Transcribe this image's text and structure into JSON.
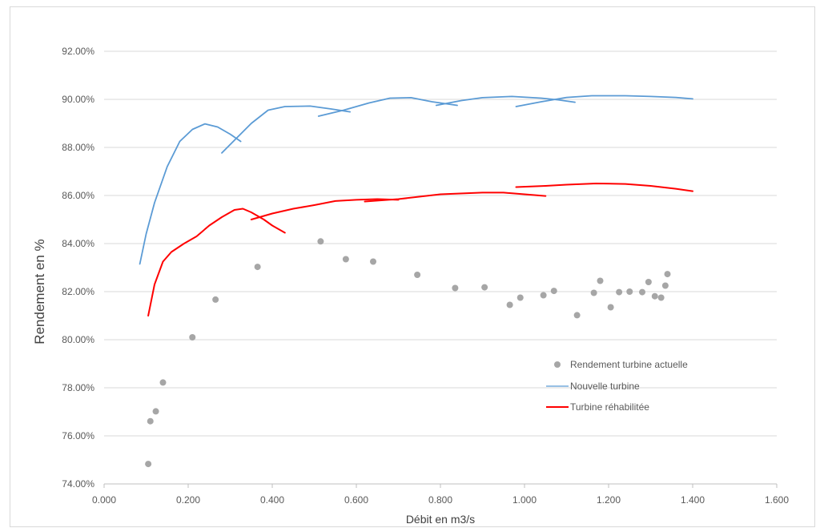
{
  "chart_data": {
    "type": "scatter",
    "xlabel": "Débit en m3/s",
    "ylabel": "Rendement en %",
    "xlim": [
      0,
      1.6
    ],
    "ylim": [
      0.74,
      0.92
    ],
    "x_ticks": [
      "0.000",
      "0.200",
      "0.400",
      "0.600",
      "0.800",
      "1.000",
      "1.200",
      "1.400",
      "1.600"
    ],
    "y_ticks": [
      "74.00%",
      "76.00%",
      "78.00%",
      "80.00%",
      "82.00%",
      "84.00%",
      "86.00%",
      "88.00%",
      "90.00%",
      "92.00%"
    ],
    "grid": "horizontal",
    "legend_position": "bottom-right",
    "series": [
      {
        "name": "Rendement turbine actuelle",
        "kind": "scatter",
        "color": "#a6a6a6",
        "points": [
          [
            0.105,
            0.7483
          ],
          [
            0.11,
            0.7661
          ],
          [
            0.123,
            0.7702
          ],
          [
            0.14,
            0.7822
          ],
          [
            0.21,
            0.801
          ],
          [
            0.265,
            0.8167
          ],
          [
            0.365,
            0.8303
          ],
          [
            0.515,
            0.8409
          ],
          [
            0.575,
            0.8335
          ],
          [
            0.64,
            0.8325
          ],
          [
            0.745,
            0.827
          ],
          [
            0.835,
            0.8215
          ],
          [
            0.905,
            0.8218
          ],
          [
            0.965,
            0.8145
          ],
          [
            0.99,
            0.8175
          ],
          [
            1.045,
            0.8185
          ],
          [
            1.07,
            0.8203
          ],
          [
            1.125,
            0.8102
          ],
          [
            1.165,
            0.8195
          ],
          [
            1.18,
            0.8245
          ],
          [
            1.205,
            0.8135
          ],
          [
            1.225,
            0.8198
          ],
          [
            1.25,
            0.82
          ],
          [
            1.28,
            0.8198
          ],
          [
            1.295,
            0.824
          ],
          [
            1.31,
            0.8181
          ],
          [
            1.325,
            0.8175
          ],
          [
            1.335,
            0.8225
          ],
          [
            1.34,
            0.8273
          ]
        ]
      },
      {
        "name": "Nouvelle turbine",
        "kind": "line",
        "color": "#5b9bd5",
        "segments": [
          [
            [
              0.085,
              0.8315
            ],
            [
              0.1,
              0.844
            ],
            [
              0.12,
              0.857
            ],
            [
              0.15,
              0.872
            ],
            [
              0.18,
              0.8825
            ],
            [
              0.21,
              0.8875
            ],
            [
              0.24,
              0.8898
            ],
            [
              0.27,
              0.8885
            ],
            [
              0.3,
              0.8855
            ],
            [
              0.325,
              0.8825
            ]
          ],
          [
            [
              0.28,
              0.8777
            ],
            [
              0.31,
              0.883
            ],
            [
              0.35,
              0.89
            ],
            [
              0.39,
              0.8955
            ],
            [
              0.43,
              0.897
            ],
            [
              0.49,
              0.8972
            ],
            [
              0.54,
              0.896
            ],
            [
              0.585,
              0.8948
            ]
          ],
          [
            [
              0.51,
              0.893
            ],
            [
              0.57,
              0.8955
            ],
            [
              0.63,
              0.8985
            ],
            [
              0.68,
              0.9005
            ],
            [
              0.73,
              0.9007
            ],
            [
              0.78,
              0.899
            ],
            [
              0.84,
              0.8975
            ]
          ],
          [
            [
              0.79,
              0.8975
            ],
            [
              0.85,
              0.8995
            ],
            [
              0.9,
              0.9007
            ],
            [
              0.97,
              0.9012
            ],
            [
              1.04,
              0.9005
            ],
            [
              1.08,
              0.8998
            ],
            [
              1.12,
              0.8988
            ]
          ],
          [
            [
              0.98,
              0.897
            ],
            [
              1.04,
              0.899
            ],
            [
              1.1,
              0.9008
            ],
            [
              1.16,
              0.9015
            ],
            [
              1.24,
              0.9015
            ],
            [
              1.3,
              0.9012
            ],
            [
              1.36,
              0.9008
            ],
            [
              1.4,
              0.9002
            ]
          ]
        ]
      },
      {
        "name": "Turbine réhabilitée",
        "kind": "line",
        "color": "#ff0000",
        "segments": [
          [
            [
              0.105,
              0.81
            ],
            [
              0.12,
              0.823
            ],
            [
              0.14,
              0.8325
            ],
            [
              0.16,
              0.8365
            ],
            [
              0.19,
              0.84
            ],
            [
              0.22,
              0.843
            ],
            [
              0.25,
              0.8475
            ],
            [
              0.28,
              0.851
            ],
            [
              0.31,
              0.854
            ],
            [
              0.33,
              0.8545
            ],
            [
              0.35,
              0.853
            ],
            [
              0.38,
              0.85
            ],
            [
              0.4,
              0.8475
            ],
            [
              0.43,
              0.8445
            ]
          ],
          [
            [
              0.35,
              0.85
            ],
            [
              0.4,
              0.8525
            ],
            [
              0.45,
              0.8545
            ],
            [
              0.5,
              0.856
            ],
            [
              0.55,
              0.8577
            ],
            [
              0.6,
              0.8582
            ],
            [
              0.65,
              0.8585
            ],
            [
              0.7,
              0.8582
            ]
          ],
          [
            [
              0.62,
              0.8575
            ],
            [
              0.7,
              0.8585
            ],
            [
              0.8,
              0.8605
            ],
            [
              0.9,
              0.8612
            ],
            [
              0.95,
              0.8612
            ],
            [
              1.0,
              0.8605
            ],
            [
              1.05,
              0.8598
            ]
          ],
          [
            [
              0.98,
              0.8635
            ],
            [
              1.05,
              0.864
            ],
            [
              1.1,
              0.8645
            ],
            [
              1.17,
              0.865
            ],
            [
              1.24,
              0.8648
            ],
            [
              1.3,
              0.864
            ],
            [
              1.36,
              0.8628
            ],
            [
              1.4,
              0.8618
            ]
          ]
        ]
      }
    ]
  }
}
